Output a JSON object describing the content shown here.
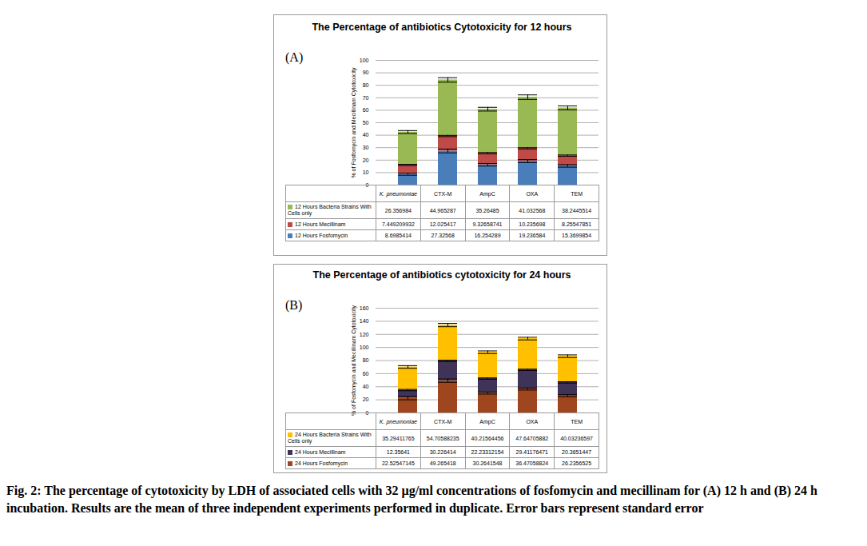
{
  "chart_data": [
    {
      "type": "bar",
      "stacked": true,
      "grid": true,
      "data_labels": true,
      "title": "The Percentage of antibiotics Cytotoxicity for 12 hours",
      "annotations": [
        "(A)"
      ],
      "ylabel": "% of Fosfomycin and Mecillinam Cytotoxicity",
      "categories": [
        "K. pneumoniae",
        "CTX-M",
        "AmpC",
        "OXA",
        "TEM"
      ],
      "ylim": [
        0,
        100
      ],
      "yticks": [
        0,
        10,
        20,
        30,
        40,
        50,
        60,
        70,
        80,
        90,
        100
      ],
      "series": [
        {
          "name": "12 Hours Fosfomycin",
          "color": "#4a7ebb",
          "values": [
            8.6985414,
            27.32568,
            16.254289,
            19.236584,
            15.3699854
          ],
          "errors": [
            0.8,
            1.5,
            1.0,
            1.2,
            1.0
          ]
        },
        {
          "name": "12 Hours Mecillinam",
          "color": "#be4b48",
          "values": [
            7.449209932,
            12.025417,
            9.32658741,
            10.235698,
            8.25547851
          ],
          "errors": [
            0.5,
            0.5,
            0.5,
            0.5,
            0.5
          ]
        },
        {
          "name": "12 Hours Bacteria Strains With Cells only",
          "color": "#98b954",
          "values": [
            26.356984,
            44.965287,
            35.26485,
            41.032568,
            38.2445514
          ],
          "errors": [
            1.2,
            1.8,
            1.5,
            1.8,
            1.6
          ]
        }
      ]
    },
    {
      "type": "bar",
      "stacked": true,
      "grid": true,
      "data_labels": true,
      "title": "The Percentage of antibiotics cytotoxicity for 24 hours",
      "annotations": [
        "(B)"
      ],
      "ylabel": "% of Fosfomycin and Mecillinam Cytotoxicity",
      "categories": [
        "K. pneumoniae",
        "CTX-M",
        "AmpC",
        "OXA",
        "TEM"
      ],
      "ylim": [
        0,
        160
      ],
      "yticks": [
        0,
        20,
        40,
        60,
        80,
        100,
        120,
        140,
        160
      ],
      "series": [
        {
          "name": "24 Hours Fosfomycin",
          "color": "#a0461f",
          "values": [
            22.52547145,
            49.265418,
            30.2641548,
            36.47058824,
            26.2356525
          ],
          "errors": [
            2.5,
            2.5,
            1.5,
            1.5,
            1.5
          ]
        },
        {
          "name": "24 Hours Mecillinam",
          "color": "#3f3357",
          "values": [
            12.35641,
            30.226414,
            22.23312154,
            29.41176471,
            20.3651447
          ],
          "errors": [
            1,
            1,
            1,
            1,
            1
          ]
        },
        {
          "name": "24 Hours Bacteria Strains With Cells only",
          "color": "#ffc000",
          "values": [
            35.29411765,
            54.70588235,
            40.21564456,
            47.64705882,
            40.03236597
          ],
          "errors": [
            2,
            2.5,
            2,
            2,
            2
          ]
        }
      ]
    }
  ],
  "caption": "Fig. 2: The percentage of cytotoxicity by LDH of associated cells with 32 µg/ml concentrations of fosfomycin and mecillinam for (A) 12 h and (B) 24 h incubation. Results are the mean of three independent experiments performed in duplicate. Error bars represent standard error"
}
